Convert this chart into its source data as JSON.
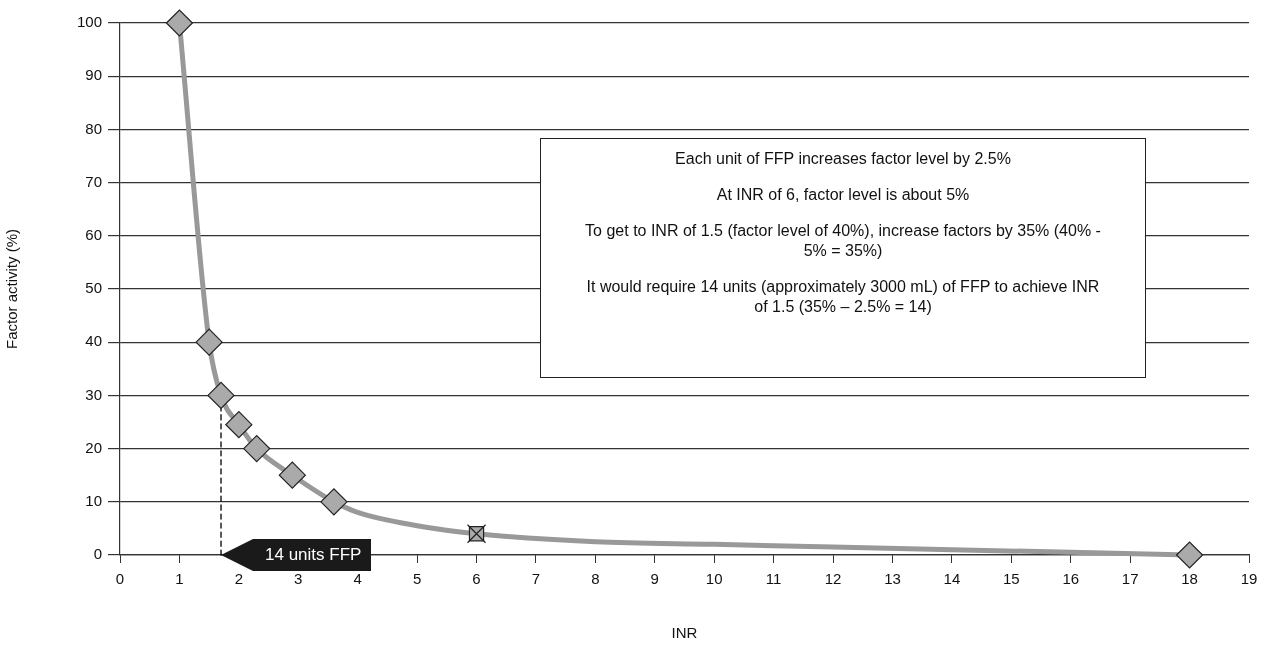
{
  "chart_data": {
    "type": "line",
    "xlabel": "INR",
    "ylabel": "Factor activity (%)",
    "xlim": [
      0,
      19
    ],
    "xticks": [
      0,
      1,
      2,
      3,
      4,
      5,
      6,
      7,
      8,
      9,
      10,
      11,
      12,
      13,
      14,
      15,
      16,
      17,
      18,
      19
    ],
    "ylim": [
      0,
      100
    ],
    "yticks": [
      0,
      10,
      20,
      30,
      40,
      50,
      60,
      70,
      80,
      90,
      100
    ],
    "grid": "y",
    "legend": false,
    "series": [
      {
        "color": "#999999",
        "marker": "none",
        "x": [
          1,
          1.5,
          1.7,
          2,
          2.3,
          2.9,
          3.6,
          4,
          5,
          6,
          8,
          10,
          14,
          18
        ],
        "values": [
          100,
          40,
          30,
          24.5,
          20,
          15,
          10,
          8,
          5.5,
          4,
          2.5,
          2,
          1,
          0
        ]
      },
      {
        "type": "line",
        "color": "#000000",
        "marker": "none",
        "line_style": "dashed",
        "x": [
          1.7,
          1.7
        ],
        "values": [
          0,
          30
        ]
      },
      {
        "type": "scatter",
        "color": "#aaaaaa",
        "marker": "diamond",
        "x": [
          1,
          1.5,
          1.7,
          2,
          2.3,
          2.9,
          3.6,
          18
        ],
        "values": [
          100,
          40,
          30,
          24.5,
          20,
          15,
          10,
          0
        ]
      },
      {
        "type": "scatter",
        "color": "#aaaaaa",
        "marker": "square",
        "x": [
          6
        ],
        "values": [
          4
        ]
      }
    ],
    "annotations": [
      {
        "text": "14 units FFP",
        "x": 1.7,
        "y": 0
      },
      "Each unit of FFP increases factor level by 2.5%",
      "At INR of 6, factor level is about 5%",
      "To get to INR of 1.5 (factor level of 40%), increase factors by 35% (40% - 5% = 35%)",
      "It would require 14 units (approximately 3000 mL) of FFP to achieve INR of 1.5 (35% – 2.5% = 14)"
    ]
  }
}
